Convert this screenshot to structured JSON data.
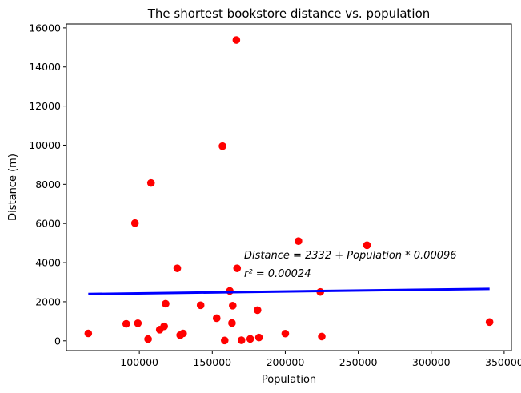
{
  "chart_data": {
    "type": "scatter",
    "title": "The shortest bookstore distance vs. population",
    "xlabel": "Population",
    "ylabel": "Distance (m)",
    "xlim": [
      50000,
      355000
    ],
    "ylim": [
      -500,
      16200
    ],
    "xticks": [
      100000,
      150000,
      200000,
      250000,
      300000,
      350000
    ],
    "yticks": [
      0,
      2000,
      4000,
      6000,
      8000,
      10000,
      12000,
      14000,
      16000
    ],
    "grid": false,
    "point_color": "#ff0000",
    "line_color": "#0000ff",
    "points": [
      {
        "x": 65000,
        "y": 380
      },
      {
        "x": 91000,
        "y": 870
      },
      {
        "x": 97000,
        "y": 6020
      },
      {
        "x": 99000,
        "y": 900
      },
      {
        "x": 106000,
        "y": 90
      },
      {
        "x": 108000,
        "y": 8070
      },
      {
        "x": 114000,
        "y": 570
      },
      {
        "x": 117000,
        "y": 740
      },
      {
        "x": 118000,
        "y": 1900
      },
      {
        "x": 126000,
        "y": 3710
      },
      {
        "x": 128000,
        "y": 290
      },
      {
        "x": 130000,
        "y": 380
      },
      {
        "x": 142000,
        "y": 1820
      },
      {
        "x": 153000,
        "y": 1160
      },
      {
        "x": 157000,
        "y": 9950
      },
      {
        "x": 158500,
        "y": 20
      },
      {
        "x": 162000,
        "y": 2550
      },
      {
        "x": 163500,
        "y": 910
      },
      {
        "x": 164000,
        "y": 1800
      },
      {
        "x": 166500,
        "y": 15380
      },
      {
        "x": 167000,
        "y": 3710
      },
      {
        "x": 170000,
        "y": 30
      },
      {
        "x": 176000,
        "y": 100
      },
      {
        "x": 181000,
        "y": 1570
      },
      {
        "x": 182000,
        "y": 170
      },
      {
        "x": 200000,
        "y": 370
      },
      {
        "x": 209000,
        "y": 5100
      },
      {
        "x": 224000,
        "y": 2500
      },
      {
        "x": 225000,
        "y": 220
      },
      {
        "x": 256000,
        "y": 4890
      },
      {
        "x": 340000,
        "y": 960
      }
    ],
    "fit_line": {
      "intercept": 2332,
      "slope": 0.00096,
      "x_range": [
        65000,
        340000
      ]
    },
    "annotations": {
      "equation": "Distance = 2332 + Population * 0.00096",
      "r_squared": "r² = 0.00024"
    }
  }
}
